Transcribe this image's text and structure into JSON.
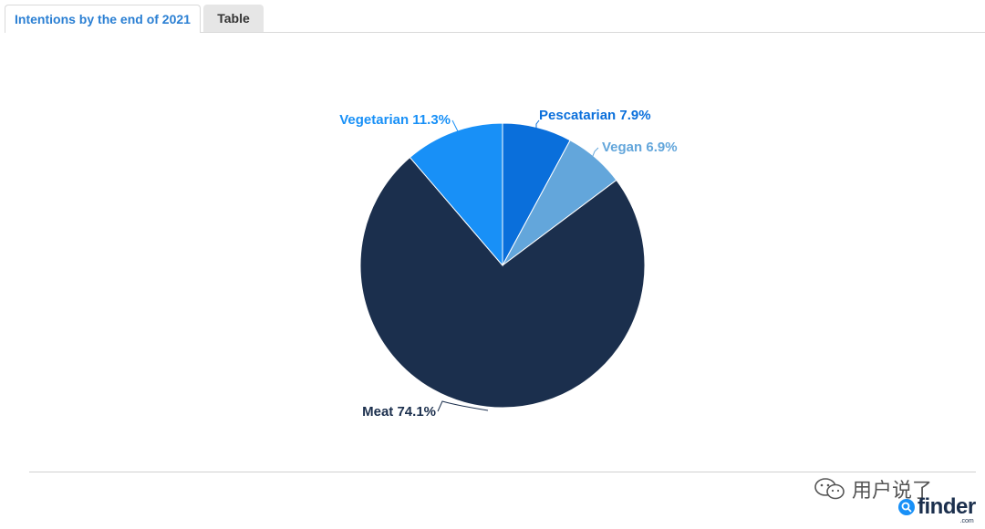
{
  "tabs": [
    {
      "label": "Intentions by the end of 2021",
      "active": true
    },
    {
      "label": "Table",
      "active": false
    }
  ],
  "chart_data": {
    "type": "pie",
    "title": "",
    "slices": [
      {
        "label": "Pescatarian",
        "value": 7.9,
        "display": "Pescatarian 7.9%",
        "color": "#0a6fdb",
        "label_color": "#0a6fdb"
      },
      {
        "label": "Vegan",
        "value": 6.9,
        "display": "Vegan 6.9%",
        "color": "#63a6db",
        "label_color": "#63a6db"
      },
      {
        "label": "Meat",
        "value": 74.1,
        "display": "Meat 74.1%",
        "color": "#1b2f4d",
        "label_color": "#1b2f4d"
      },
      {
        "label": "Vegetarian",
        "value": 11.3,
        "display": "Vegetarian 11.3%",
        "color": "#1890f7",
        "label_color": "#1890f7"
      }
    ]
  },
  "watermark": {
    "text": "用户说了",
    "icon": "wechat-icon"
  },
  "brand": {
    "name": "finder",
    "suffix": ".com",
    "icon": "finder-search-icon"
  }
}
